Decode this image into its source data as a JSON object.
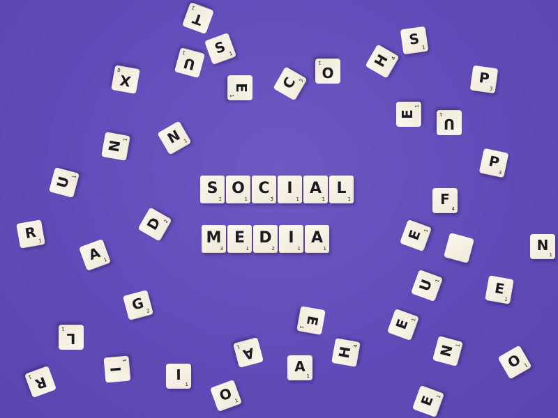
{
  "photo": {
    "background_color": "#624bb8",
    "tile_color": "#f6f1e3",
    "ink_color": "#1b1b24"
  },
  "center_words": [
    {
      "word": "SOCIAL",
      "tiles": [
        {
          "letter": "S",
          "score": "1"
        },
        {
          "letter": "O",
          "score": "1"
        },
        {
          "letter": "C",
          "score": "3"
        },
        {
          "letter": "I",
          "score": "1"
        },
        {
          "letter": "A",
          "score": "1"
        },
        {
          "letter": "L",
          "score": "1"
        }
      ]
    },
    {
      "word": "MEDIA",
      "tiles": [
        {
          "letter": "M",
          "score": "3"
        },
        {
          "letter": "E",
          "score": "1"
        },
        {
          "letter": "D",
          "score": "2"
        },
        {
          "letter": "I",
          "score": "1"
        },
        {
          "letter": "A",
          "score": "1"
        }
      ]
    }
  ],
  "scattered_tiles": [
    {
      "letter": "T",
      "score": "1"
    },
    {
      "letter": "S",
      "score": "1"
    },
    {
      "letter": "U",
      "score": "1"
    },
    {
      "letter": "X",
      "score": "8"
    },
    {
      "letter": "E",
      "score": "1"
    },
    {
      "letter": "C",
      "score": "3"
    },
    {
      "letter": "O",
      "score": "1"
    },
    {
      "letter": "H",
      "score": "4"
    },
    {
      "letter": "S",
      "score": "1"
    },
    {
      "letter": "P",
      "score": "3"
    },
    {
      "letter": "E",
      "score": "1"
    },
    {
      "letter": "U",
      "score": "1"
    },
    {
      "letter": "N",
      "score": "1"
    },
    {
      "letter": "N",
      "score": "1"
    },
    {
      "letter": "P",
      "score": "3"
    },
    {
      "letter": "U",
      "score": "1"
    },
    {
      "letter": "F",
      "score": "4"
    },
    {
      "letter": "R",
      "score": "1"
    },
    {
      "letter": "D",
      "score": "2"
    },
    {
      "letter": "A",
      "score": "1"
    },
    {
      "letter": "E",
      "score": "1"
    },
    {
      "letter": "",
      "score": ""
    },
    {
      "letter": "N",
      "score": "1"
    },
    {
      "letter": "U",
      "score": "1"
    },
    {
      "letter": "E",
      "score": "1"
    },
    {
      "letter": "G",
      "score": "2"
    },
    {
      "letter": "E",
      "score": "1"
    },
    {
      "letter": "E",
      "score": "1"
    },
    {
      "letter": "L",
      "score": "1"
    },
    {
      "letter": "H",
      "score": "4"
    },
    {
      "letter": "A",
      "score": "1"
    },
    {
      "letter": "I",
      "score": "1"
    },
    {
      "letter": "I",
      "score": "1"
    },
    {
      "letter": "A",
      "score": "1"
    },
    {
      "letter": "R",
      "score": "1"
    },
    {
      "letter": "O",
      "score": "1"
    },
    {
      "letter": "N",
      "score": "1"
    },
    {
      "letter": "O",
      "score": "1"
    },
    {
      "letter": "E",
      "score": "1"
    }
  ]
}
